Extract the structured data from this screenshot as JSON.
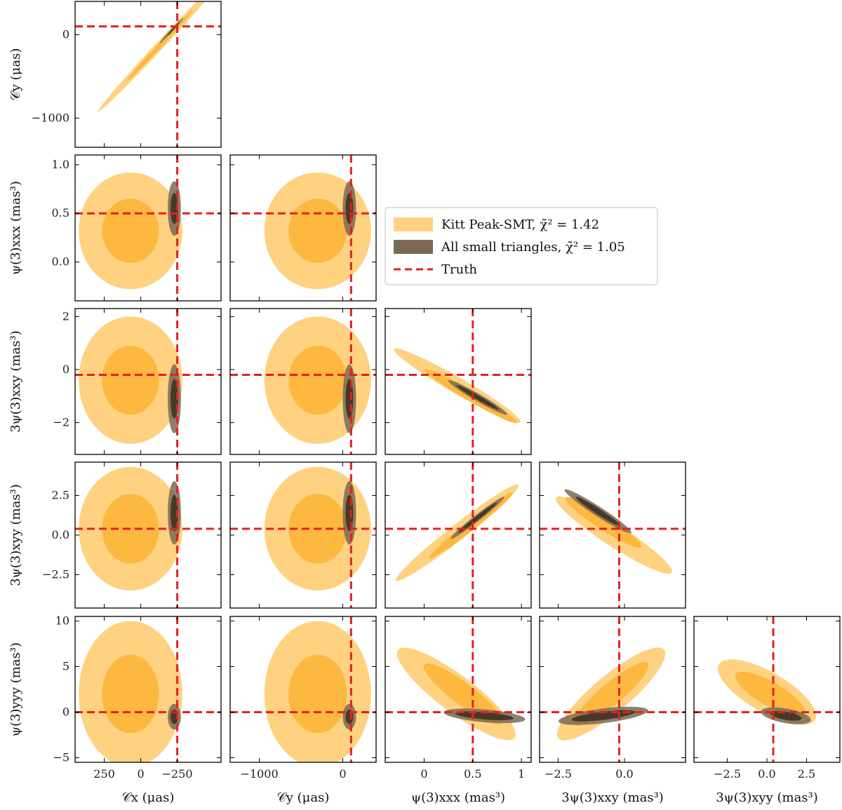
{
  "colors": {
    "kitt_outer": "#fed280",
    "kitt_inner": "#fdb840",
    "small_outer": "#7a6a55",
    "small_inner": "#3a2e1e",
    "truth": "#e61f1f",
    "frame": "#000000"
  },
  "legend": {
    "kitt_label": "Kitt Peak-SMT,  χ̃² = 1.42",
    "small_label": "All small triangles,  χ̃² = 1.05",
    "truth_label": "Truth"
  },
  "chart_data": {
    "type": "corner",
    "parameters": [
      {
        "key": "cx",
        "label": "𝒞x (μas)",
        "range": [
          450,
          -550
        ],
        "ticks": [
          250,
          0,
          -250
        ],
        "tick_labels": [
          "250",
          "0",
          "−250"
        ],
        "truth": -250
      },
      {
        "key": "cy",
        "label": "𝒞y (μas)",
        "range": [
          -1350,
          400
        ],
        "ticks": [
          -1000,
          0
        ],
        "tick_labels": [
          "−1000",
          "0"
        ],
        "truth": 100
      },
      {
        "key": "xxx",
        "label": "ψ(3)xxx (mas³)",
        "range": [
          -0.4,
          1.1
        ],
        "ticks": [
          0,
          0.5,
          1
        ],
        "tick_labels": [
          "0",
          "0.5",
          "1"
        ],
        "truth": 0.5
      },
      {
        "key": "xxy",
        "label": "3ψ(3)xxy (mas³)",
        "range": [
          -3.2,
          2.3
        ],
        "ticks": [
          -2.5,
          0.0
        ],
        "tick_labels": [
          "−2.5",
          "0.0"
        ],
        "truth": -0.2
      },
      {
        "key": "xyy",
        "label": "3ψ(3)xyy (mas³)",
        "range": [
          -4.6,
          4.6
        ],
        "ticks": [
          -2.5,
          0.0,
          2.5
        ],
        "tick_labels": [
          "−2.5",
          "0.0",
          "2.5"
        ],
        "truth": 0.4
      },
      {
        "key": "yyy",
        "label": "ψ(3)yyy (mas³)",
        "range": [
          -5.5,
          10.5
        ],
        "ticks": [
          -5,
          0,
          5,
          10
        ],
        "tick_labels": [
          "−5",
          "0",
          "5",
          "10"
        ],
        "truth": 0
      }
    ],
    "y_axis_ticks": {
      "cy": {
        "ticks": [
          -1000,
          0
        ],
        "tick_labels": [
          "−1000",
          "0"
        ]
      },
      "xxx": {
        "ticks": [
          0.0,
          0.5,
          1.0
        ],
        "tick_labels": [
          "0.0",
          "0.5",
          "1.0"
        ]
      },
      "xxy": {
        "ticks": [
          -2,
          0,
          2
        ],
        "tick_labels": [
          "−2",
          "0",
          "2"
        ]
      },
      "xyy": {
        "ticks": [
          -2.5,
          0.0,
          2.5
        ],
        "tick_labels": [
          "−2.5",
          "0.0",
          "2.5"
        ]
      },
      "yyy": {
        "ticks": [
          -5,
          0,
          5,
          10
        ],
        "tick_labels": [
          "−5",
          "0",
          "5",
          "10"
        ]
      }
    },
    "series": [
      {
        "name": "Kitt Peak-SMT",
        "chi2_reduced": 1.42
      },
      {
        "name": "All small triangles",
        "chi2_reduced": 1.05
      },
      {
        "name": "Truth"
      }
    ]
  }
}
